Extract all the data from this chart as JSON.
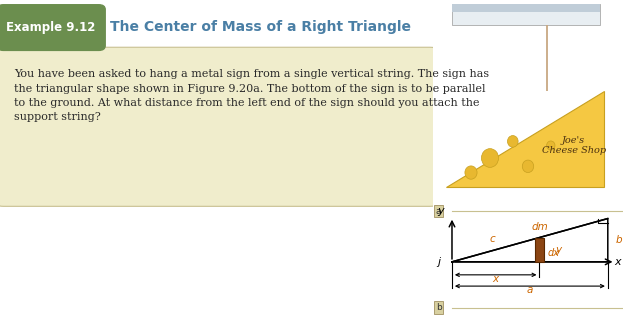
{
  "title": "Example 9.12",
  "subtitle": "The Center of Mass of a Right Triangle",
  "body_text": "You have been asked to hang a metal sign from a single vertical string. The sign has\nthe triangular shape shown in Figure 9.20a. The bottom of the sign is to be parallel\nto the ground. At what distance from the left end of the sign should you attach the\nsupport string?",
  "example_box_color": "#6b8e4e",
  "example_text_color": "#ffffff",
  "subtitle_color": "#4a7fa5",
  "body_bg_color": "#f0edcc",
  "body_edge_color": "#c8c090",
  "sign_triangle_color": "#f5c842",
  "sign_triangle_edge": "#c8a020",
  "sign_text": "Joe's\nCheese Shop",
  "sign_text_color": "#4a3010",
  "ceiling_color_top": "#c0cdd8",
  "ceiling_color_bot": "#e8eef2",
  "string_color": "#c8a882",
  "dm_bar_color": "#8b4513",
  "dm_bar_edge": "#5a2800",
  "label_color_italic": "#cc6600",
  "diagram_line_color": "#000000",
  "label_dm": "dm",
  "label_dx": "dx",
  "label_j": "j",
  "label_x_var": "x",
  "label_y_var": "y",
  "label_a": "a",
  "label_b": "b",
  "label_c": "c",
  "label_x_axis": "x",
  "label_y_axis": "y",
  "section_a_label": "a",
  "section_b_label": "b",
  "sep_line_color": "#c8c090",
  "sep_box_color": "#d8d0a0",
  "sep_box_edge": "#a09060",
  "cheese_hole_color": "#e8b830",
  "cheese_hole_edge": "#c8a020"
}
